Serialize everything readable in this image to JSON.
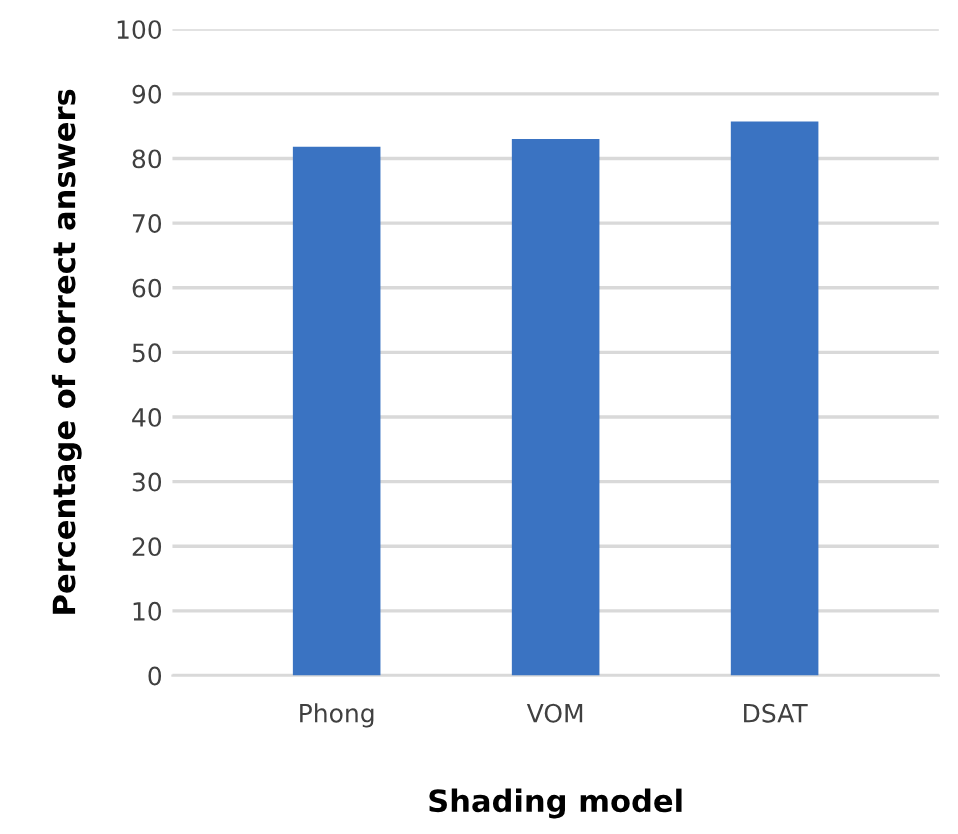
{
  "chart_data": {
    "type": "bar",
    "xlabel": "Shading model",
    "ylabel": "Percentage of correct answers",
    "categories": [
      "Phong",
      "VOM",
      "DSAT"
    ],
    "values": [
      81.8,
      83.0,
      85.7
    ],
    "color": "#3a73c2",
    "ylim": [
      0,
      100
    ],
    "yticks": [
      0,
      10,
      20,
      30,
      40,
      50,
      60,
      70,
      80,
      90,
      100
    ],
    "grid": "y"
  }
}
